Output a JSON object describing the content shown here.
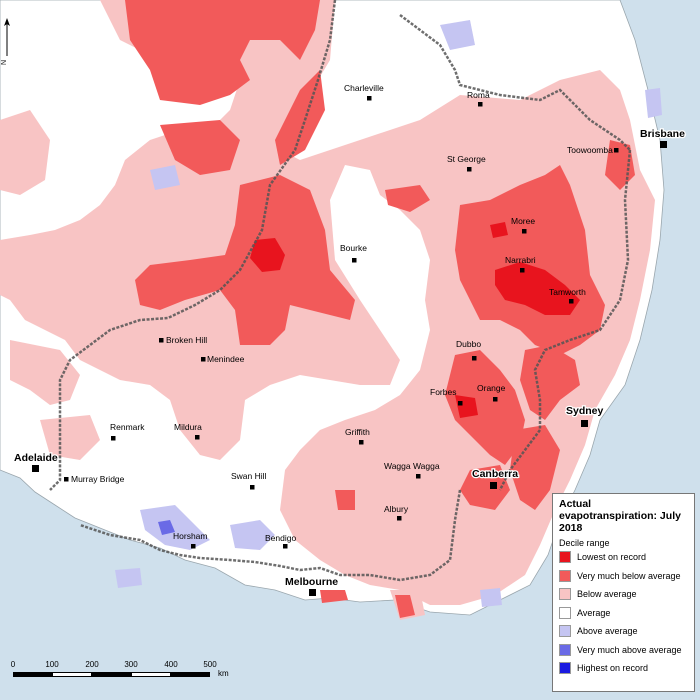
{
  "legend": {
    "title": "Actual evapotranspiration: July 2018",
    "subtitle": "Decile range",
    "items": [
      {
        "label": "Lowest on record",
        "color": "#e8141e"
      },
      {
        "label": "Very much below average",
        "color": "#f25a5a"
      },
      {
        "label": "Below average",
        "color": "#f8c4c4"
      },
      {
        "label": "Average",
        "color": "#ffffff"
      },
      {
        "label": "Above average",
        "color": "#c5c5f2"
      },
      {
        "label": "Very much above average",
        "color": "#6a6ae6"
      },
      {
        "label": "Highest on record",
        "color": "#1a1ae0"
      }
    ]
  },
  "places": {
    "charleville": "Charleville",
    "roma": "Roma",
    "brisbane": "Brisbane",
    "toowoomba": "Toowoomba",
    "st_george": "St George",
    "moree": "Moree",
    "bourke": "Bourke",
    "narrabri": "Narrabri",
    "tamworth": "Tamworth",
    "broken_hill": "Broken Hill",
    "menindee": "Menindee",
    "dubbo": "Dubbo",
    "orange": "Orange",
    "forbes": "Forbes",
    "sydney": "Sydney",
    "renmark": "Renmark",
    "mildura": "Mildura",
    "griffith": "Griffith",
    "adelaide": "Adelaide",
    "murray_bridge": "Murray Bridge",
    "swan_hill": "Swan Hill",
    "wagga_wagga": "Wagga Wagga",
    "canberra": "Canberra",
    "albury": "Albury",
    "horsham": "Horsham",
    "bendigo": "Bendigo",
    "melbourne": "Melbourne"
  },
  "scale_bar": {
    "ticks": [
      "0",
      "100",
      "200",
      "300",
      "400",
      "500"
    ],
    "unit": "km"
  },
  "north_label": "N",
  "colors": {
    "sea": "#cfe0ec",
    "land": "#ffffff",
    "below": "#f8c4c4",
    "very_below": "#f25a5a",
    "lowest": "#e8141e",
    "above": "#c5c5f2",
    "very_above": "#6a6ae6",
    "border": "#555555"
  }
}
